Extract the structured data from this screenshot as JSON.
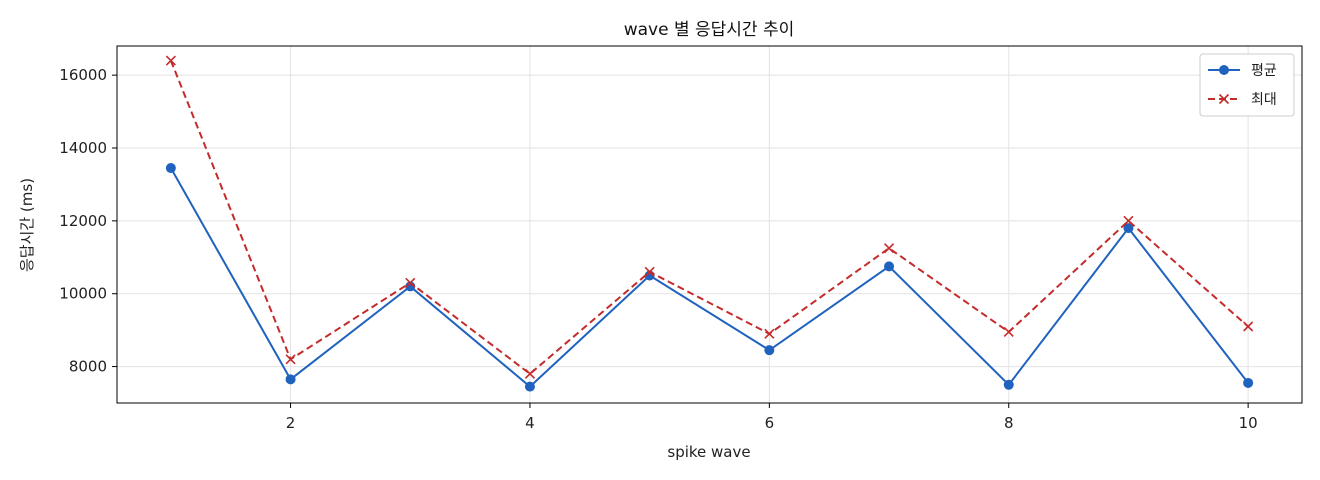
{
  "chart_data": {
    "type": "line",
    "title": "wave 별 응답시간 추이",
    "xlabel": "spike wave",
    "ylabel": "응답시간 (ms)",
    "x": [
      1,
      2,
      3,
      4,
      5,
      6,
      7,
      8,
      9,
      10
    ],
    "xlim": [
      0.55,
      10.45
    ],
    "ylim": [
      7000,
      16800
    ],
    "xticks": [
      2,
      4,
      6,
      8,
      10
    ],
    "yticks": [
      8000,
      10000,
      12000,
      14000,
      16000
    ],
    "grid": true,
    "legend_position": "top-right",
    "series": [
      {
        "name": "평균",
        "color": "#1f63be",
        "marker": "circle",
        "linestyle": "solid",
        "values": [
          13450,
          7650,
          10200,
          7450,
          10500,
          8450,
          10750,
          7500,
          11800,
          7550
        ]
      },
      {
        "name": "최대",
        "color": "#c42b2b",
        "marker": "x",
        "linestyle": "dashed",
        "values": [
          16400,
          8200,
          10300,
          7800,
          10600,
          8900,
          11250,
          8950,
          12000,
          9100
        ]
      }
    ]
  }
}
